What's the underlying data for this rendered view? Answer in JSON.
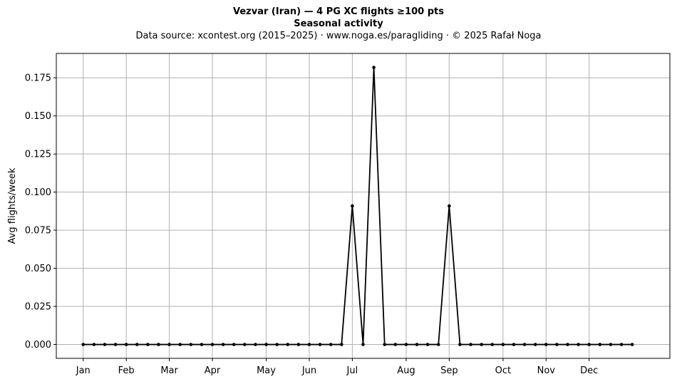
{
  "chart_data": {
    "type": "line",
    "title": "Vezvar (Iran)  —  4 PG XC flights ≥100 pts",
    "subtitle": "Seasonal activity",
    "source_line": "Data source: xcontest.org (2015–2025)  ·  www.noga.es/paragliding  ·  © 2025 Rafał Noga",
    "xlabel": "",
    "ylabel": "Avg flights/week",
    "ylim": [
      -0.0091,
      0.191
    ],
    "xlim": [
      -2.5,
      54.5
    ],
    "yticks": [
      0.0,
      0.025,
      0.05,
      0.075,
      0.1,
      0.125,
      0.15,
      0.175
    ],
    "ytick_labels": [
      "0.000",
      "0.025",
      "0.050",
      "0.075",
      "0.100",
      "0.125",
      "0.150",
      "0.175"
    ],
    "xticks": [
      0,
      4,
      8,
      12,
      17,
      21,
      25,
      30,
      34,
      39,
      43,
      47
    ],
    "xtick_labels": [
      "Jan",
      "Feb",
      "Mar",
      "Apr",
      "May",
      "Jun",
      "Jul",
      "Aug",
      "Sep",
      "Oct",
      "Nov",
      "Dec"
    ],
    "grid": true,
    "line_color": "#000000",
    "x": [
      0,
      1,
      2,
      3,
      4,
      5,
      6,
      7,
      8,
      9,
      10,
      11,
      12,
      13,
      14,
      15,
      16,
      17,
      18,
      19,
      20,
      21,
      22,
      23,
      24,
      25,
      26,
      27,
      28,
      29,
      30,
      31,
      32,
      33,
      34,
      35,
      36,
      37,
      38,
      39,
      40,
      41,
      42,
      43,
      44,
      45,
      46,
      47,
      48,
      49,
      50,
      51
    ],
    "series": [
      {
        "values": [
          0,
          0,
          0,
          0,
          0,
          0,
          0,
          0,
          0,
          0,
          0,
          0,
          0,
          0,
          0,
          0,
          0,
          0,
          0,
          0,
          0,
          0,
          0,
          0,
          0,
          0.0909,
          0,
          0.1818,
          0,
          0,
          0,
          0,
          0,
          0,
          0.0909,
          0,
          0,
          0,
          0,
          0,
          0,
          0,
          0,
          0,
          0,
          0,
          0,
          0,
          0,
          0,
          0,
          0
        ]
      }
    ]
  }
}
